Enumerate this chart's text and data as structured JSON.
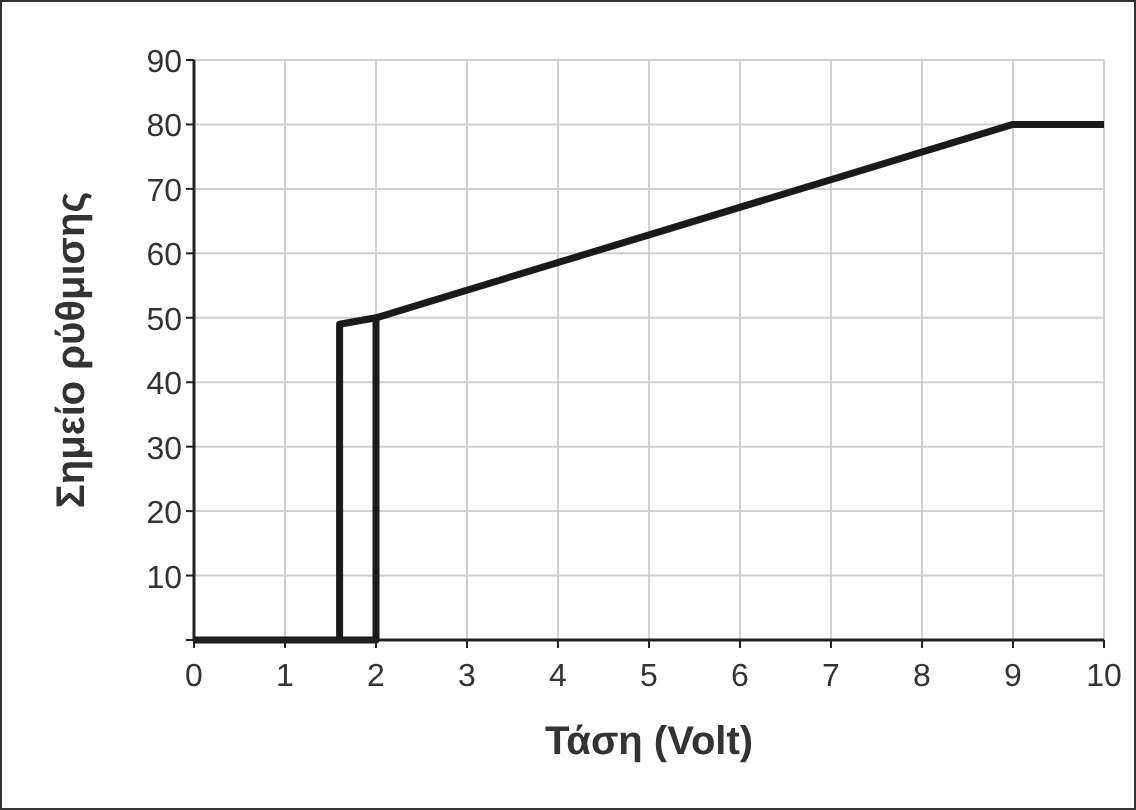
{
  "chart_data": {
    "type": "line",
    "xlabel": "Τάση (Volt)",
    "ylabel": "Σημείο ρύθμισης",
    "xlim": [
      0,
      10
    ],
    "ylim": [
      0,
      90
    ],
    "xticks": [
      0,
      1,
      2,
      3,
      4,
      5,
      6,
      7,
      8,
      9,
      10
    ],
    "yticks": [
      {
        "value": 0,
        "label": null
      },
      10,
      20,
      30,
      40,
      50,
      60,
      70,
      80,
      90
    ],
    "grid": true,
    "marker": "none",
    "line_style": "solid",
    "series": [
      {
        "color": "#1a1a1a",
        "x": [
          0,
          2,
          2,
          9,
          10
        ],
        "values": [
          0,
          0,
          50,
          80,
          80
        ]
      },
      {
        "color": "#1a1a1a",
        "x": [
          1.6,
          1.6,
          2
        ],
        "values": [
          0,
          49,
          50
        ]
      }
    ]
  }
}
